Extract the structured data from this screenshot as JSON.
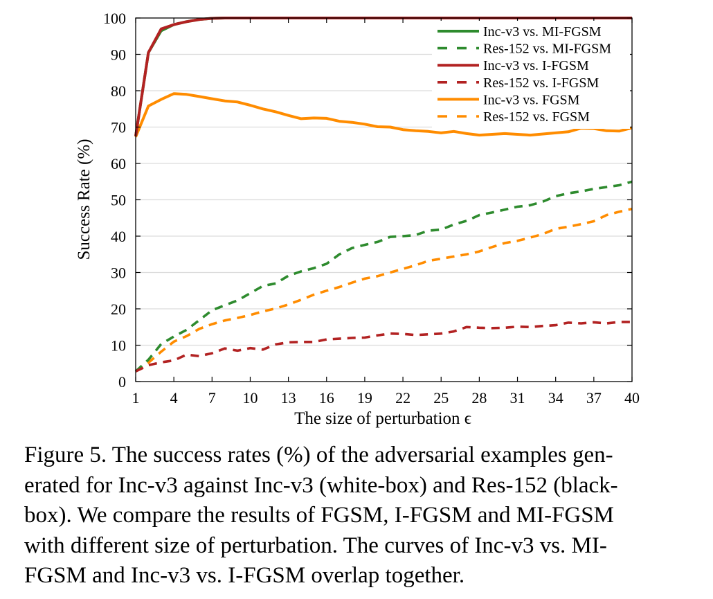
{
  "chart_data": {
    "type": "line",
    "xlabel": "The size of perturbation ϵ",
    "ylabel": "Success Rate (%)",
    "xlim": [
      1,
      40
    ],
    "ylim": [
      0,
      100
    ],
    "xticks": [
      1,
      4,
      7,
      10,
      13,
      16,
      19,
      22,
      25,
      28,
      31,
      34,
      37,
      40
    ],
    "yticks": [
      0,
      10,
      20,
      30,
      40,
      50,
      60,
      70,
      80,
      90,
      100
    ],
    "grid": "horizontal",
    "legend_position": "top-right",
    "x": [
      1,
      2,
      3,
      4,
      5,
      6,
      7,
      8,
      9,
      10,
      11,
      12,
      13,
      14,
      15,
      16,
      17,
      18,
      19,
      20,
      21,
      22,
      23,
      24,
      25,
      26,
      27,
      28,
      29,
      30,
      31,
      32,
      33,
      34,
      35,
      36,
      37,
      38,
      39,
      40
    ],
    "series": [
      {
        "name": "Inc-v3 vs. MI-FGSM",
        "color": "#2e8b2e",
        "style": "solid",
        "values": [
          67.5,
          90.5,
          96.5,
          98.2,
          99.0,
          99.6,
          99.9,
          100,
          100,
          100,
          100,
          100,
          100,
          100,
          100,
          100,
          100,
          100,
          100,
          100,
          100,
          100,
          100,
          100,
          100,
          100,
          100,
          100,
          100,
          100,
          100,
          100,
          100,
          100,
          100,
          100,
          100,
          100,
          100,
          100
        ]
      },
      {
        "name": "Res-152 vs. MI-FGSM",
        "color": "#2e8b2e",
        "style": "dashed",
        "values": [
          2.8,
          6.0,
          10.3,
          12.4,
          14.2,
          16.9,
          19.6,
          21.0,
          22.3,
          24.3,
          26.3,
          27.0,
          29.1,
          30.3,
          31.2,
          32.4,
          35.0,
          36.7,
          37.6,
          38.4,
          39.8,
          40.0,
          40.3,
          41.5,
          41.8,
          43.2,
          44.2,
          45.8,
          46.5,
          47.3,
          48.1,
          48.5,
          49.5,
          51.0,
          51.8,
          52.3,
          53.0,
          53.5,
          54.0,
          55.0
        ]
      },
      {
        "name": "Inc-v3 vs. I-FGSM",
        "color": "#b22222",
        "style": "solid",
        "values": [
          67.5,
          90.5,
          97.0,
          98.2,
          99.0,
          99.6,
          99.9,
          100,
          100,
          100,
          100,
          100,
          100,
          100,
          100,
          100,
          100,
          100,
          100,
          100,
          100,
          100,
          100,
          100,
          100,
          100,
          100,
          100,
          100,
          100,
          100,
          100,
          100,
          100,
          100,
          100,
          100,
          100,
          100,
          100
        ]
      },
      {
        "name": "Res-152 vs. I-FGSM",
        "color": "#b22222",
        "style": "dashed",
        "values": [
          2.8,
          4.5,
          5.3,
          5.8,
          7.4,
          7.0,
          7.8,
          9.1,
          8.5,
          9.2,
          8.8,
          10.2,
          10.8,
          10.9,
          10.9,
          11.6,
          11.8,
          12.0,
          12.1,
          12.7,
          13.2,
          13.1,
          12.8,
          13.0,
          13.2,
          13.8,
          15.0,
          14.8,
          14.7,
          14.8,
          15.1,
          15.0,
          15.3,
          15.5,
          16.2,
          16.0,
          16.3,
          16.0,
          16.4,
          16.4
        ]
      },
      {
        "name": "Inc-v3 vs. FGSM",
        "color": "#ff8c00",
        "style": "solid",
        "values": [
          67.3,
          75.8,
          77.6,
          79.2,
          79.0,
          78.4,
          77.8,
          77.2,
          76.9,
          76.0,
          75.0,
          74.2,
          73.2,
          72.3,
          72.5,
          72.4,
          71.6,
          71.3,
          70.8,
          70.1,
          70.0,
          69.3,
          69.0,
          68.8,
          68.4,
          68.8,
          68.2,
          67.8,
          68.0,
          68.2,
          68.0,
          67.8,
          68.1,
          68.4,
          68.7,
          69.7,
          69.6,
          69.0,
          68.9,
          69.8
        ]
      },
      {
        "name": "Res-152 vs. FGSM",
        "color": "#ff8c00",
        "style": "dashed",
        "values": [
          2.8,
          5.2,
          8.2,
          11.0,
          12.5,
          14.5,
          15.8,
          16.8,
          17.5,
          18.3,
          19.3,
          20.1,
          21.2,
          22.5,
          23.9,
          25.0,
          26.0,
          27.2,
          28.3,
          29.0,
          30.0,
          31.0,
          32.0,
          33.2,
          33.8,
          34.4,
          35.0,
          35.8,
          37.0,
          38.1,
          38.7,
          39.6,
          40.6,
          42.0,
          42.6,
          43.3,
          44.1,
          45.8,
          46.7,
          47.5
        ]
      }
    ]
  },
  "caption": {
    "lines": [
      "Figure 5. The success rates (%) of the adversarial examples gen-",
      "erated for Inc-v3 against Inc-v3 (white-box) and Res-152 (black-",
      "box).  We compare the results of FGSM, I-FGSM and MI-FGSM",
      "with different size of perturbation.  The curves of Inc-v3 vs.  MI-",
      "FGSM and Inc-v3 vs. I-FGSM overlap together."
    ]
  }
}
